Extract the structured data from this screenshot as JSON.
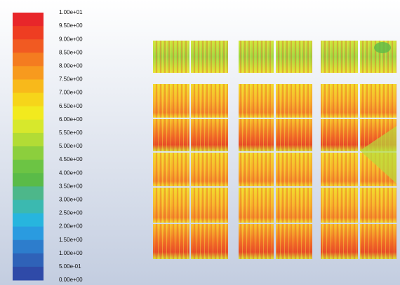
{
  "legend": {
    "labels": [
      "1.00e+01",
      "9.50e+00",
      "9.00e+00",
      "8.50e+00",
      "8.00e+00",
      "7.50e+00",
      "7.00e+00",
      "6.50e+00",
      "6.00e+00",
      "5.50e+00",
      "5.00e+00",
      "4.50e+00",
      "4.00e+00",
      "3.50e+00",
      "3.00e+00",
      "2.50e+00",
      "2.00e+00",
      "1.50e+00",
      "1.00e+00",
      "5.00e-01",
      "0.00e+00"
    ],
    "colors": [
      "#e8262a",
      "#ee3d22",
      "#f15a22",
      "#f47c20",
      "#f79a1e",
      "#f8b91b",
      "#f6d51a",
      "#f2ea1e",
      "#d7e82c",
      "#b2dc35",
      "#8ccf3d",
      "#6cc444",
      "#5abb48",
      "#4db78a",
      "#3bb9b0",
      "#27b5de",
      "#2a9be0",
      "#2d7dcc",
      "#2f62b8",
      "#2f4aa8"
    ]
  }
}
